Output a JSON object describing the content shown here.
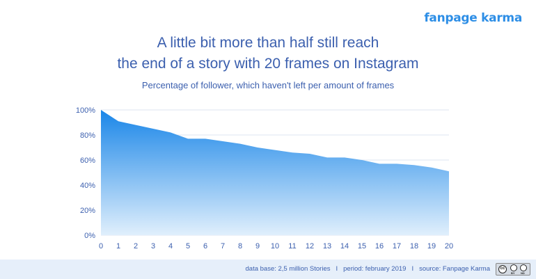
{
  "brand": {
    "logo_text": "fanpage karma"
  },
  "header": {
    "title_line1": "A little bit more than half still reach",
    "title_line2": "the end of a story with 20 frames on Instagram",
    "subtitle": "Percentage of follower, which haven't left per amount of frames"
  },
  "chart_data": {
    "type": "area",
    "title": "A little bit more than half still reach the end of a story with 20 frames on Instagram",
    "subtitle": "Percentage of follower, which haven't left per amount of frames",
    "xlabel": "",
    "ylabel": "",
    "x": [
      0,
      1,
      2,
      3,
      4,
      5,
      6,
      7,
      8,
      9,
      10,
      11,
      12,
      13,
      14,
      15,
      16,
      17,
      18,
      19,
      20
    ],
    "values": [
      100,
      91,
      88,
      85,
      82,
      77,
      77,
      75,
      73,
      70,
      68,
      66,
      65,
      62,
      62,
      60,
      57,
      57,
      56,
      54,
      51
    ],
    "y_ticks": [
      "0%",
      "20%",
      "40%",
      "60%",
      "80%",
      "100%"
    ],
    "ylim": [
      0,
      100
    ],
    "grid": true,
    "colors": {
      "top": "#1a86e8",
      "bottom": "#e0effc",
      "grid": "#dde6f0",
      "axis": "#3b5fae"
    }
  },
  "footer": {
    "data_base": "data base: 2,5 million Stories",
    "period": "period: february 2019",
    "source": "source: Fanpage Karma",
    "separator": "I",
    "license_icon": "cc-by-nd-icon",
    "license_labels": [
      "cc",
      "BY",
      "ND"
    ]
  }
}
